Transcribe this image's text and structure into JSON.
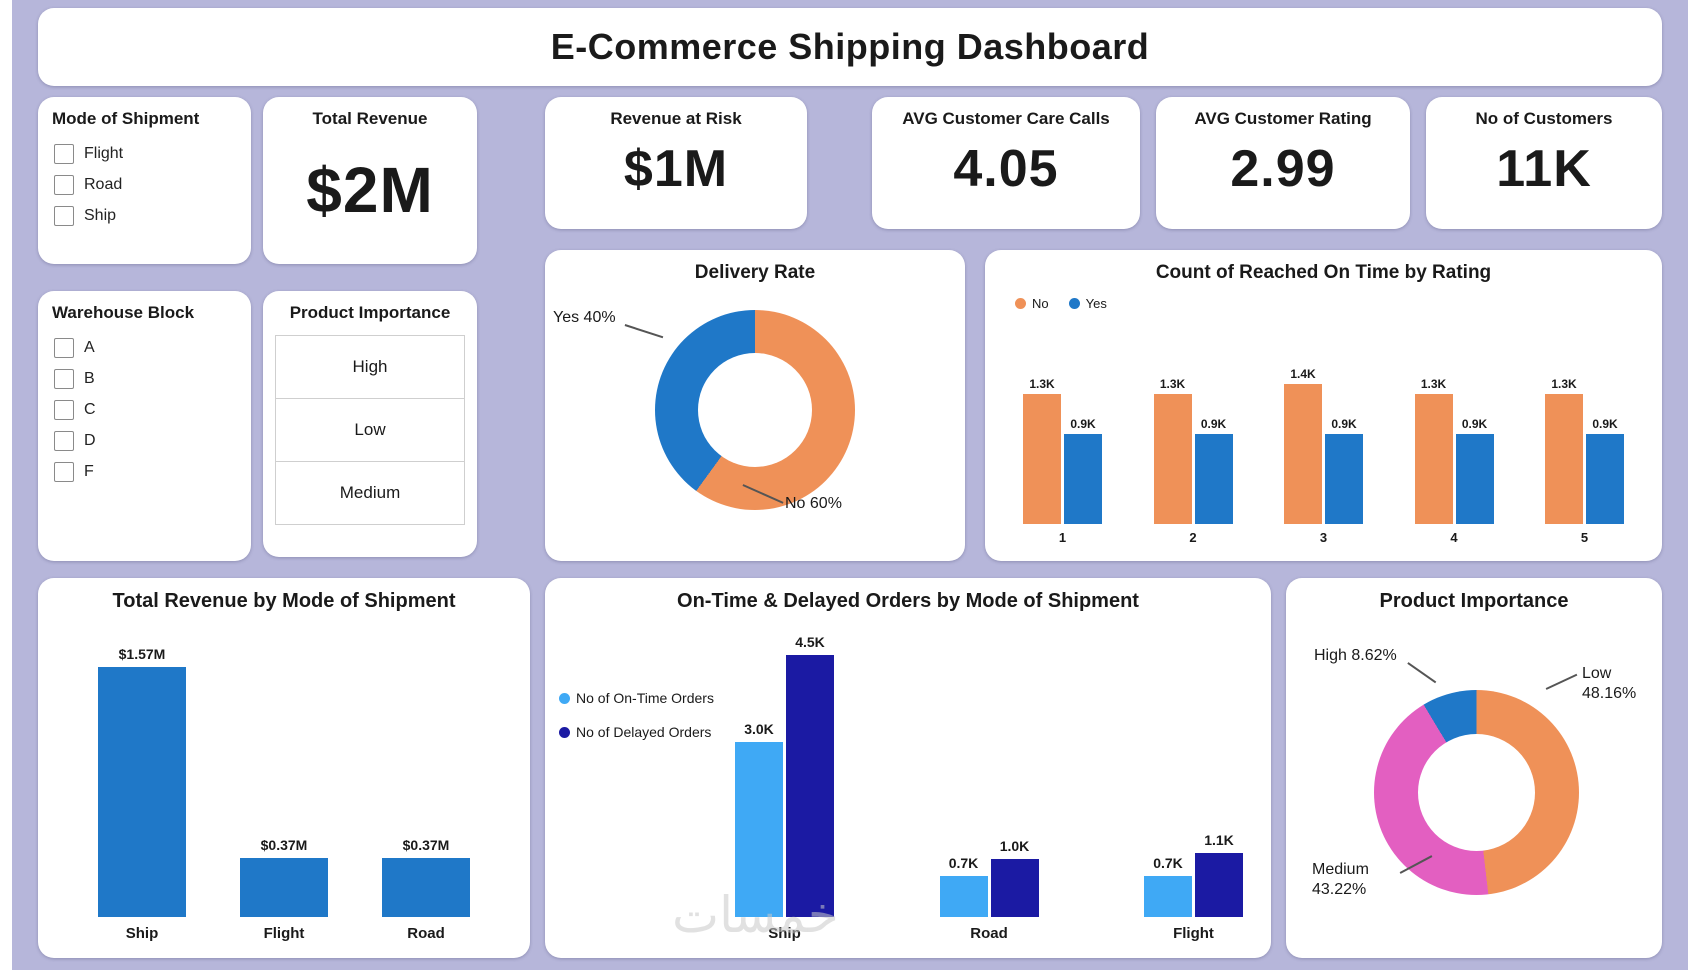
{
  "title": "E-Commerce Shipping Dashboard",
  "watermark": "خمسات",
  "colors": {
    "background": "#b6b6da",
    "orange": "#ef9158",
    "blue": "#1f78c8",
    "light_blue": "#3fa9f5",
    "navy": "#1b1aa3",
    "pink": "#e35fc1"
  },
  "slicers": {
    "mode_of_shipment": {
      "title": "Mode of Shipment",
      "options": [
        "Flight",
        "Road",
        "Ship"
      ]
    },
    "warehouse_block": {
      "title": "Warehouse Block",
      "options": [
        "A",
        "B",
        "C",
        "D",
        "F"
      ]
    },
    "product_importance": {
      "title": "Product Importance",
      "options": [
        "High",
        "Low",
        "Medium"
      ]
    }
  },
  "kpis": [
    {
      "label": "Total Revenue",
      "value": "$2M"
    },
    {
      "label": "Revenue at Risk",
      "value": "$1M"
    },
    {
      "label": "AVG Customer Care Calls",
      "value": "4.05"
    },
    {
      "label": "AVG Customer Rating",
      "value": "2.99"
    },
    {
      "label": "No of Customers",
      "value": "11K"
    }
  ],
  "chart_data": [
    {
      "type": "pie",
      "title": "Delivery Rate",
      "legend_position": "none",
      "segments": [
        {
          "label": "No",
          "pct": 60,
          "color": "#ef9158"
        },
        {
          "label": "Yes",
          "pct": 40,
          "color": "#1f78c8"
        }
      ],
      "callouts": {
        "yes": "Yes 40%",
        "no": "No 60%"
      }
    },
    {
      "type": "bar",
      "title": "Count of Reached On Time by Rating",
      "xlabel": "Rating",
      "ylim": [
        0,
        1.4
      ],
      "legend_position": "top-left",
      "categories": [
        "1",
        "2",
        "3",
        "4",
        "5"
      ],
      "series": [
        {
          "name": "No",
          "color": "#ef9158",
          "values": [
            1.3,
            1.3,
            1.4,
            1.3,
            1.3
          ],
          "labels": [
            "1.3K",
            "1.3K",
            "1.4K",
            "1.3K",
            "1.3K"
          ]
        },
        {
          "name": "Yes",
          "color": "#1f78c8",
          "values": [
            0.9,
            0.9,
            0.9,
            0.9,
            0.9
          ],
          "labels": [
            "0.9K",
            "0.9K",
            "0.9K",
            "0.9K",
            "0.9K"
          ]
        }
      ]
    },
    {
      "type": "bar",
      "title": "Total Revenue by Mode of Shipment",
      "ylim": [
        0,
        1.57
      ],
      "color": "#1f78c8",
      "categories": [
        "Ship",
        "Flight",
        "Road"
      ],
      "values": [
        1.57,
        0.37,
        0.37
      ],
      "labels": [
        "$1.57M",
        "$0.37M",
        "$0.37M"
      ]
    },
    {
      "type": "bar",
      "title": "On-Time & Delayed Orders by Mode of Shipment",
      "ylim": [
        0,
        4.5
      ],
      "legend_position": "left",
      "categories": [
        "Ship",
        "Road",
        "Flight"
      ],
      "series": [
        {
          "name": "No of On-Time Orders",
          "color": "#3fa9f5",
          "values": [
            3.0,
            0.7,
            0.7
          ],
          "labels": [
            "3.0K",
            "0.7K",
            "0.7K"
          ]
        },
        {
          "name": "No of Delayed Orders",
          "color": "#1b1aa3",
          "values": [
            4.5,
            1.0,
            1.1
          ],
          "labels": [
            "4.5K",
            "1.0K",
            "1.1K"
          ]
        }
      ]
    },
    {
      "type": "pie",
      "title": "Product Importance",
      "legend_position": "none",
      "segments": [
        {
          "label": "Low",
          "pct": 48.16,
          "color": "#ef9158"
        },
        {
          "label": "Medium",
          "pct": 43.22,
          "color": "#e35fc1"
        },
        {
          "label": "High",
          "pct": 8.62,
          "color": "#1f78c8"
        }
      ],
      "callouts": {
        "high": "High 8.62%",
        "low": "Low 48.16%",
        "medium": "Medium 43.22%"
      }
    }
  ]
}
